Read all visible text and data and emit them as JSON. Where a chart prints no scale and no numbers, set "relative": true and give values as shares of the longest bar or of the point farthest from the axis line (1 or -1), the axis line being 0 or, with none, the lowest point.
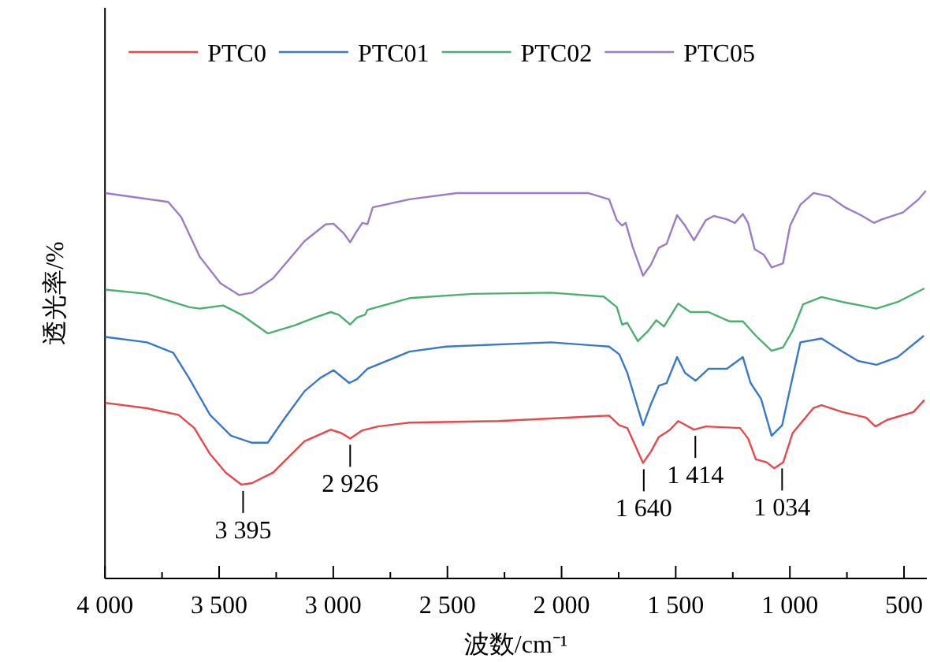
{
  "chart_data": {
    "type": "line",
    "relative": true,
    "xlabel": "波数/cm⁻¹",
    "ylabel": "透光率/%",
    "legend": "top",
    "tick_labels": "x",
    "xlim": [
      4000,
      400
    ],
    "xticks": [
      {
        "value": 4000,
        "label": "4 000"
      },
      {
        "value": 3750,
        "label": null
      },
      {
        "value": 3500,
        "label": "3 500"
      },
      {
        "value": 3250,
        "label": null
      },
      {
        "value": 3000,
        "label": "3 000"
      },
      {
        "value": 2750,
        "label": null
      },
      {
        "value": 2500,
        "label": "2 500"
      },
      {
        "value": 2250,
        "label": null
      },
      {
        "value": 2000,
        "label": "2 000"
      },
      {
        "value": 1750,
        "label": null
      },
      {
        "value": 1500,
        "label": "1 500"
      },
      {
        "value": 1250,
        "label": null
      },
      {
        "value": 1000,
        "label": "1 000"
      },
      {
        "value": 750,
        "label": null
      },
      {
        "value": 500,
        "label": "500"
      }
    ],
    "series": [
      {
        "name": "PTC0",
        "color": "#e8474b",
        "x": [
          3999,
          3816,
          3678,
          3609,
          3540,
          3471,
          3402,
          3356,
          3264,
          3126,
          3011,
          2965,
          2926,
          2873,
          2804,
          2666,
          2275,
          1792,
          1747,
          1712,
          1643,
          1609,
          1574,
          1528,
          1489,
          1420,
          1368,
          1218,
          1183,
          1149,
          1103,
          1068,
          1029,
          988,
          896,
          861,
          769,
          666,
          625,
          574,
          459,
          411
        ],
        "values": [
          0.453,
          0.439,
          0.422,
          0.388,
          0.321,
          0.273,
          0.242,
          0.246,
          0.273,
          0.354,
          0.384,
          0.375,
          0.361,
          0.382,
          0.392,
          0.402,
          0.406,
          0.42,
          0.395,
          0.388,
          0.298,
          0.327,
          0.365,
          0.382,
          0.406,
          0.384,
          0.392,
          0.388,
          0.361,
          0.307,
          0.3,
          0.284,
          0.3,
          0.375,
          0.44,
          0.447,
          0.429,
          0.415,
          0.392,
          0.409,
          0.429,
          0.46
        ]
      },
      {
        "name": "PTC01",
        "color": "#3a78c9",
        "x": [
          3999,
          3816,
          3701,
          3632,
          3540,
          3448,
          3356,
          3287,
          3218,
          3126,
          3057,
          2999,
          2930,
          2896,
          2850,
          2666,
          2505,
          2046,
          1792,
          1747,
          1712,
          1643,
          1609,
          1574,
          1540,
          1494,
          1459,
          1413,
          1356,
          1275,
          1206,
          1172,
          1126,
          1080,
          1034,
          999,
          954,
          861,
          769,
          701,
          620,
          528,
          413
        ],
        "values": [
          0.623,
          0.609,
          0.582,
          0.517,
          0.422,
          0.368,
          0.35,
          0.35,
          0.409,
          0.483,
          0.517,
          0.537,
          0.504,
          0.514,
          0.541,
          0.585,
          0.598,
          0.609,
          0.598,
          0.578,
          0.53,
          0.395,
          0.449,
          0.497,
          0.504,
          0.571,
          0.53,
          0.51,
          0.541,
          0.541,
          0.571,
          0.504,
          0.463,
          0.368,
          0.395,
          0.49,
          0.609,
          0.619,
          0.585,
          0.561,
          0.551,
          0.571,
          0.626
        ]
      },
      {
        "name": "PTC02",
        "color": "#4caf6e",
        "x": [
          3999,
          3816,
          3632,
          3585,
          3482,
          3402,
          3287,
          3172,
          3080,
          3011,
          2976,
          2926,
          2896,
          2861,
          2850,
          2666,
          2390,
          2046,
          1816,
          1758,
          1735,
          1712,
          1666,
          1620,
          1585,
          1551,
          1489,
          1436,
          1356,
          1264,
          1206,
          1149,
          1080,
          1030,
          988,
          942,
          861,
          769,
          689,
          622,
          528,
          411
        ],
        "values": [
          0.745,
          0.734,
          0.7,
          0.696,
          0.704,
          0.68,
          0.632,
          0.652,
          0.673,
          0.687,
          0.68,
          0.655,
          0.673,
          0.68,
          0.693,
          0.723,
          0.734,
          0.737,
          0.727,
          0.7,
          0.655,
          0.659,
          0.612,
          0.639,
          0.666,
          0.65,
          0.709,
          0.687,
          0.687,
          0.663,
          0.663,
          0.626,
          0.587,
          0.596,
          0.639,
          0.707,
          0.726,
          0.713,
          0.704,
          0.696,
          0.713,
          0.748
        ]
      },
      {
        "name": "PTC05",
        "color": "#9b7cc6",
        "x": [
          3999,
          3723,
          3666,
          3585,
          3494,
          3413,
          3356,
          3264,
          3126,
          3034,
          2999,
          2954,
          2926,
          2903,
          2873,
          2850,
          2827,
          2666,
          2459,
          2161,
          1885,
          1792,
          1758,
          1735,
          1719,
          1689,
          1643,
          1609,
          1574,
          1540,
          1494,
          1459,
          1420,
          1368,
          1333,
          1275,
          1241,
          1206,
          1183,
          1154,
          1114,
          1080,
          1030,
          999,
          954,
          896,
          827,
          758,
          689,
          632,
          597,
          505,
          436,
          404
        ],
        "values": [
          0.994,
          0.971,
          0.932,
          0.83,
          0.761,
          0.731,
          0.737,
          0.774,
          0.87,
          0.913,
          0.915,
          0.89,
          0.867,
          0.89,
          0.917,
          0.914,
          0.957,
          0.978,
          0.994,
          0.994,
          0.994,
          0.978,
          0.924,
          0.91,
          0.917,
          0.856,
          0.781,
          0.809,
          0.853,
          0.863,
          0.937,
          0.91,
          0.872,
          0.924,
          0.935,
          0.926,
          0.917,
          0.94,
          0.917,
          0.849,
          0.835,
          0.802,
          0.813,
          0.91,
          0.964,
          0.994,
          0.985,
          0.957,
          0.937,
          0.917,
          0.926,
          0.944,
          0.978,
          1
        ]
      }
    ],
    "annotations": [
      {
        "text": "3 395",
        "x": 3395,
        "y": 0.242
      },
      {
        "text": "2 926",
        "x": 2926,
        "y": 0.361
      },
      {
        "text": "1 640",
        "x": 1640,
        "y": 0.298
      },
      {
        "text": "1 414",
        "x": 1414,
        "y": 0.384
      },
      {
        "text": "1 034",
        "x": 1034,
        "y": 0.3
      }
    ]
  }
}
